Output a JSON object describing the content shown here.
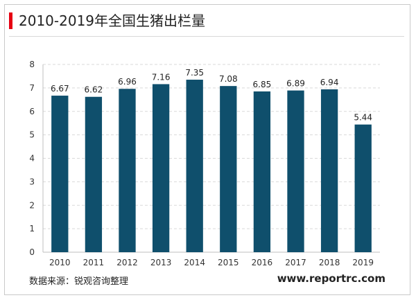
{
  "chart_data": {
    "type": "bar",
    "title": "2010-2019年全国生猪出栏量",
    "categories": [
      "2010",
      "2011",
      "2012",
      "2013",
      "2014",
      "2015",
      "2016",
      "2017",
      "2018",
      "2019"
    ],
    "values": [
      6.67,
      6.62,
      6.96,
      7.16,
      7.35,
      7.08,
      6.85,
      6.89,
      6.94,
      5.44
    ],
    "data_labels": [
      "6.67",
      "6.62",
      "6.96",
      "7.16",
      "7.35",
      "7.08",
      "6.85",
      "6.89",
      "6.94",
      "5.44"
    ],
    "ylim": [
      0,
      8
    ],
    "yticks": [
      "0",
      "1",
      "2",
      "3",
      "4",
      "5",
      "6",
      "7",
      "8"
    ],
    "xlabel": "",
    "ylabel": "",
    "grid": "horizontal dashed",
    "bar_color": "#0f4f6c",
    "accent_color": "#e60012"
  },
  "footer": {
    "source": "数据来源：锐观咨询整理",
    "website": "www.reportrc.com"
  }
}
